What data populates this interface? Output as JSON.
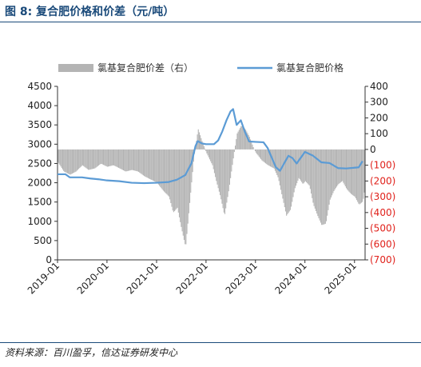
{
  "figure": {
    "title": "图 8:  复合肥价格和价差（元/吨）",
    "source": "资料来源：百川盈孚，信达证券研发中心"
  },
  "chart_data": {
    "type": "bar+line",
    "legend": {
      "placement": "top",
      "entries": [
        "氯基复合肥价差（右）",
        "氯基复合肥价格"
      ]
    },
    "x_ticks": [
      "2019-01",
      "2020-01",
      "2021-01",
      "2022-01",
      "2023-01",
      "2024-01",
      "2025-01"
    ],
    "y_left": {
      "ticks": [
        "0",
        "500",
        "1000",
        "1500",
        "2000",
        "2500",
        "3000",
        "3500",
        "4000",
        "4500"
      ],
      "range": [
        0,
        4500
      ]
    },
    "y_right": {
      "ticks": [
        "400",
        "300",
        "200",
        "100",
        "0",
        "(100)",
        "(200)",
        "(300)",
        "(400)",
        "(500)",
        "(600)",
        "(700)"
      ],
      "range": [
        -700,
        400
      ],
      "negative_color": "#e0211b"
    },
    "series": [
      {
        "name": "氯基复合肥价差（右）",
        "type": "bar",
        "axis": "right",
        "color": "#b4b4b4",
        "points": [
          [
            "2019-01-01",
            -80
          ],
          [
            "2019-02-15",
            -140
          ],
          [
            "2019-04-01",
            -160
          ],
          [
            "2019-05-15",
            -140
          ],
          [
            "2019-07-01",
            -100
          ],
          [
            "2019-08-15",
            -130
          ],
          [
            "2019-10-01",
            -120
          ],
          [
            "2019-11-15",
            -90
          ],
          [
            "2020-01-01",
            -110
          ],
          [
            "2020-02-15",
            -100
          ],
          [
            "2020-04-01",
            -120
          ],
          [
            "2020-05-15",
            -140
          ],
          [
            "2020-07-01",
            -130
          ],
          [
            "2020-08-15",
            -140
          ],
          [
            "2020-10-01",
            -170
          ],
          [
            "2020-11-15",
            -190
          ],
          [
            "2021-01-01",
            -210
          ],
          [
            "2021-02-15",
            -260
          ],
          [
            "2021-04-01",
            -300
          ],
          [
            "2021-05-01",
            -400
          ],
          [
            "2021-06-01",
            -370
          ],
          [
            "2021-07-01",
            -500
          ],
          [
            "2021-08-01",
            -620
          ],
          [
            "2021-09-01",
            -330
          ],
          [
            "2021-10-01",
            -50
          ],
          [
            "2021-11-01",
            130
          ],
          [
            "2021-12-01",
            50
          ],
          [
            "2022-01-01",
            -20
          ],
          [
            "2022-02-15",
            -100
          ],
          [
            "2022-03-15",
            -200
          ],
          [
            "2022-04-15",
            -300
          ],
          [
            "2022-05-15",
            -420
          ],
          [
            "2022-06-15",
            -260
          ],
          [
            "2022-07-15",
            -80
          ],
          [
            "2022-08-15",
            100
          ],
          [
            "2022-09-15",
            150
          ],
          [
            "2022-10-15",
            130
          ],
          [
            "2022-11-15",
            80
          ],
          [
            "2022-12-15",
            10
          ],
          [
            "2023-01-01",
            -20
          ],
          [
            "2023-02-15",
            -70
          ],
          [
            "2023-04-01",
            -100
          ],
          [
            "2023-05-15",
            -120
          ],
          [
            "2023-06-15",
            -180
          ],
          [
            "2023-07-15",
            -300
          ],
          [
            "2023-08-15",
            -420
          ],
          [
            "2023-09-15",
            -380
          ],
          [
            "2023-10-15",
            -250
          ],
          [
            "2023-11-15",
            -180
          ],
          [
            "2023-12-15",
            -220
          ],
          [
            "2024-01-01",
            -200
          ],
          [
            "2024-02-01",
            -230
          ],
          [
            "2024-03-01",
            -350
          ],
          [
            "2024-04-01",
            -420
          ],
          [
            "2024-05-01",
            -480
          ],
          [
            "2024-06-01",
            -470
          ],
          [
            "2024-07-01",
            -320
          ],
          [
            "2024-08-01",
            -260
          ],
          [
            "2024-09-01",
            -220
          ],
          [
            "2024-10-01",
            -200
          ],
          [
            "2024-11-01",
            -250
          ],
          [
            "2024-12-01",
            -280
          ],
          [
            "2025-01-01",
            -300
          ],
          [
            "2025-02-01",
            -350
          ],
          [
            "2025-03-01",
            -330
          ],
          [
            "2025-03-15",
            -250
          ]
        ]
      },
      {
        "name": "氯基复合肥价格",
        "type": "line",
        "axis": "left",
        "color": "#5b9bd5",
        "points": [
          [
            "2019-01-01",
            2220
          ],
          [
            "2019-03-01",
            2220
          ],
          [
            "2019-04-01",
            2140
          ],
          [
            "2019-07-01",
            2140
          ],
          [
            "2019-09-01",
            2110
          ],
          [
            "2019-11-01",
            2090
          ],
          [
            "2020-01-01",
            2060
          ],
          [
            "2020-04-01",
            2040
          ],
          [
            "2020-07-01",
            2000
          ],
          [
            "2020-10-01",
            1990
          ],
          [
            "2021-01-01",
            2000
          ],
          [
            "2021-04-01",
            2020
          ],
          [
            "2021-06-01",
            2080
          ],
          [
            "2021-08-01",
            2200
          ],
          [
            "2021-09-15",
            2500
          ],
          [
            "2021-10-15",
            2950
          ],
          [
            "2021-11-01",
            3080
          ],
          [
            "2021-12-01",
            3020
          ],
          [
            "2022-01-01",
            3000
          ],
          [
            "2022-03-01",
            3000
          ],
          [
            "2022-04-01",
            3100
          ],
          [
            "2022-05-01",
            3330
          ],
          [
            "2022-06-01",
            3620
          ],
          [
            "2022-07-01",
            3850
          ],
          [
            "2022-07-20",
            3910
          ],
          [
            "2022-08-15",
            3500
          ],
          [
            "2022-09-15",
            3620
          ],
          [
            "2022-10-15",
            3320
          ],
          [
            "2022-11-15",
            3070
          ],
          [
            "2023-01-01",
            3060
          ],
          [
            "2023-03-01",
            3050
          ],
          [
            "2023-04-01",
            2900
          ],
          [
            "2023-05-01",
            2650
          ],
          [
            "2023-06-01",
            2400
          ],
          [
            "2023-07-01",
            2310
          ],
          [
            "2023-09-01",
            2700
          ],
          [
            "2023-10-01",
            2640
          ],
          [
            "2023-11-01",
            2500
          ],
          [
            "2024-01-01",
            2800
          ],
          [
            "2024-03-01",
            2700
          ],
          [
            "2024-05-01",
            2530
          ],
          [
            "2024-07-01",
            2510
          ],
          [
            "2024-09-01",
            2380
          ],
          [
            "2024-11-01",
            2370
          ],
          [
            "2025-01-01",
            2390
          ],
          [
            "2025-02-01",
            2400
          ],
          [
            "2025-03-01",
            2560
          ]
        ]
      }
    ]
  }
}
